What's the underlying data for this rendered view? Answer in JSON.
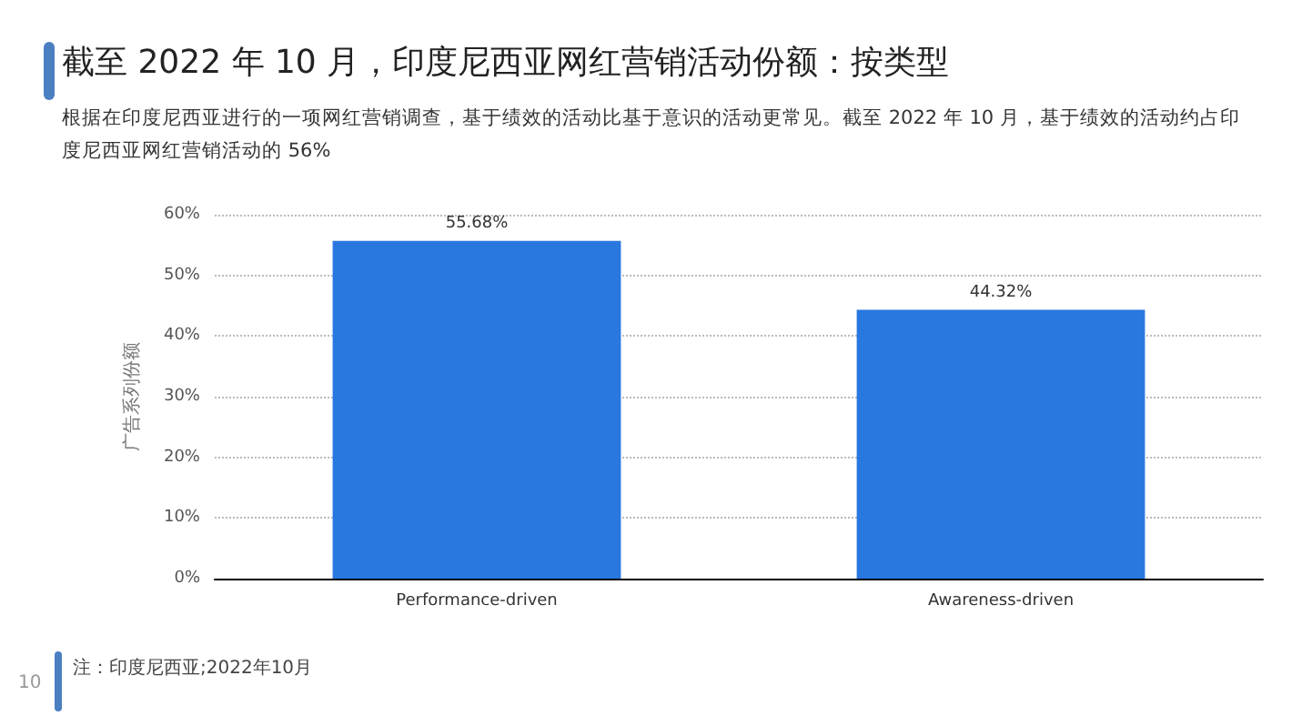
{
  "chart_data": {
    "type": "bar",
    "title": "截至 2022 年 10 月，印度尼西亚网红营销活动份额：按类型",
    "subtitle": "根据在印度尼西亚进行的一项网红营销调查，基于绩效的活动比基于意识的活动更常见。截至 2022 年 10 月，基于绩效的活动约占印度尼西亚网红营销活动的 56%",
    "ylabel": "广告系列份额",
    "categories": [
      "Performance-driven",
      "Awareness-driven"
    ],
    "values": [
      55.68,
      44.32
    ],
    "value_labels": [
      "55.68%",
      "44.32%"
    ],
    "color": "#2878e0",
    "ylim": [
      0,
      60
    ],
    "yticks": [
      {
        "value": 0,
        "label": "0%"
      },
      {
        "value": 10,
        "label": "10%"
      },
      {
        "value": 20,
        "label": "20%"
      },
      {
        "value": 30,
        "label": "30%"
      },
      {
        "value": 40,
        "label": "40%"
      },
      {
        "value": 50,
        "label": "50%"
      },
      {
        "value": 60,
        "label": "60%"
      }
    ],
    "grid": "y",
    "annotations": [
      "注：印度尼西亚;2022年10月",
      "10"
    ]
  }
}
